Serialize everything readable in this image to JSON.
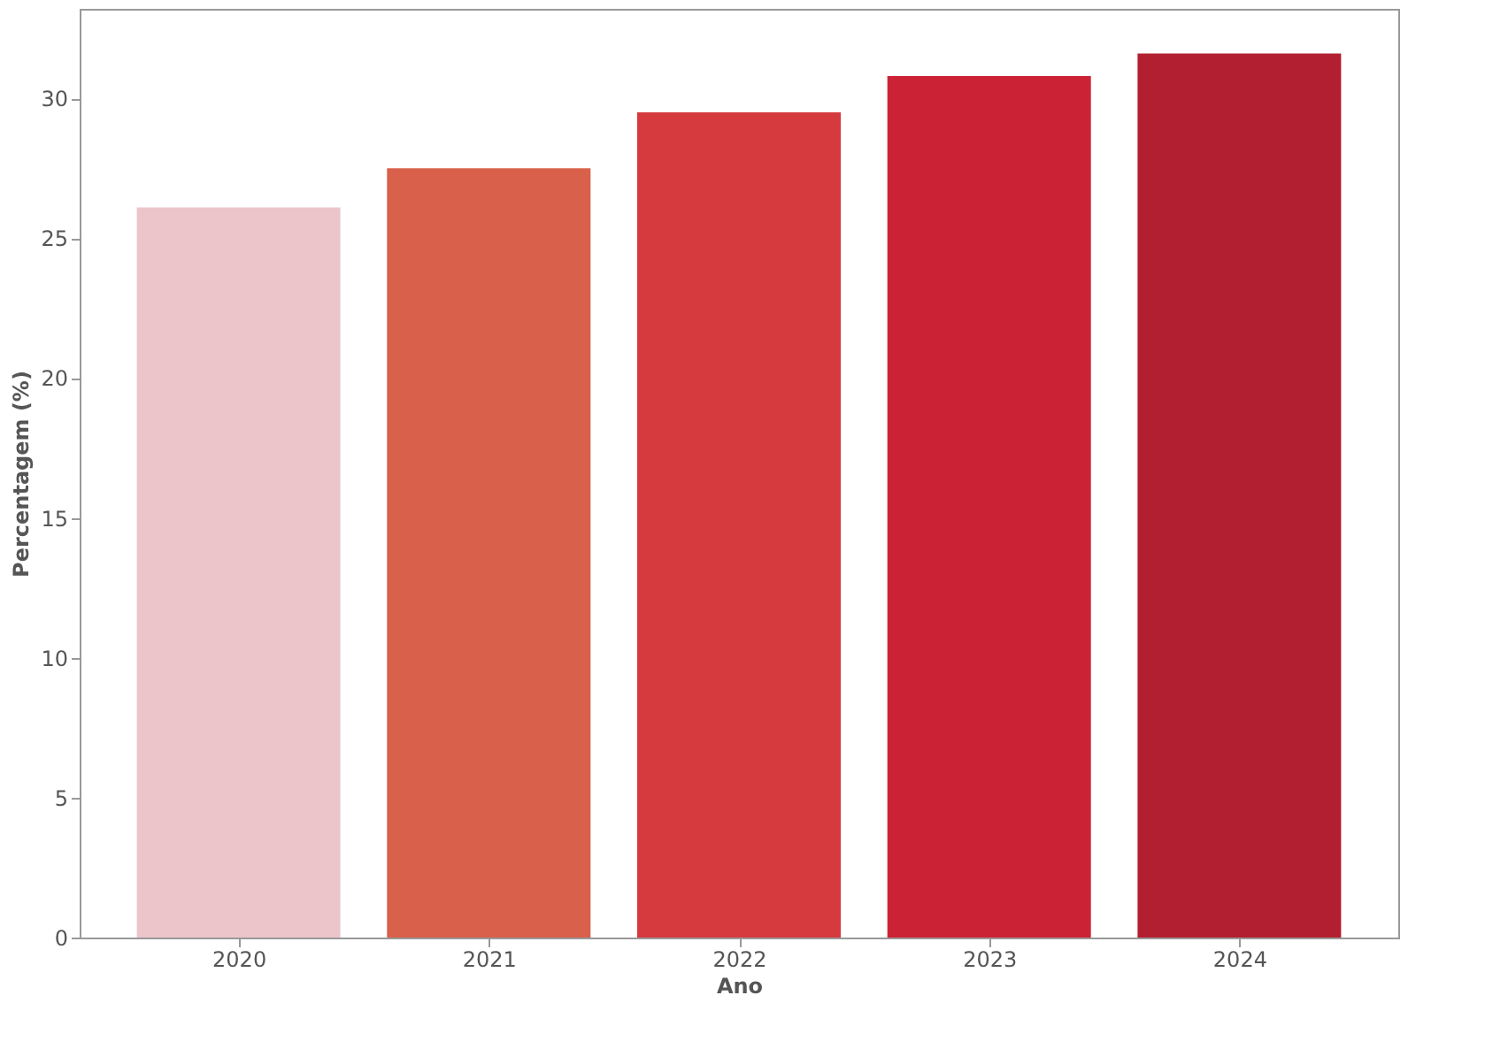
{
  "chart_data": {
    "type": "bar",
    "xlabel": "Ano",
    "ylabel": "Percentagem (%)",
    "categories": [
      "2020",
      "2021",
      "2022",
      "2023",
      "2024"
    ],
    "values": [
      26.1,
      27.5,
      29.5,
      30.8,
      31.6
    ],
    "colors": [
      "#ebc5ca",
      "#d9604a",
      "#d63a3e",
      "#cc2235",
      "#b21f30"
    ],
    "ylim": [
      0,
      33.2
    ],
    "yticks": [
      0,
      5,
      10,
      15,
      20,
      25,
      30
    ],
    "grid": false,
    "legend": false
  }
}
